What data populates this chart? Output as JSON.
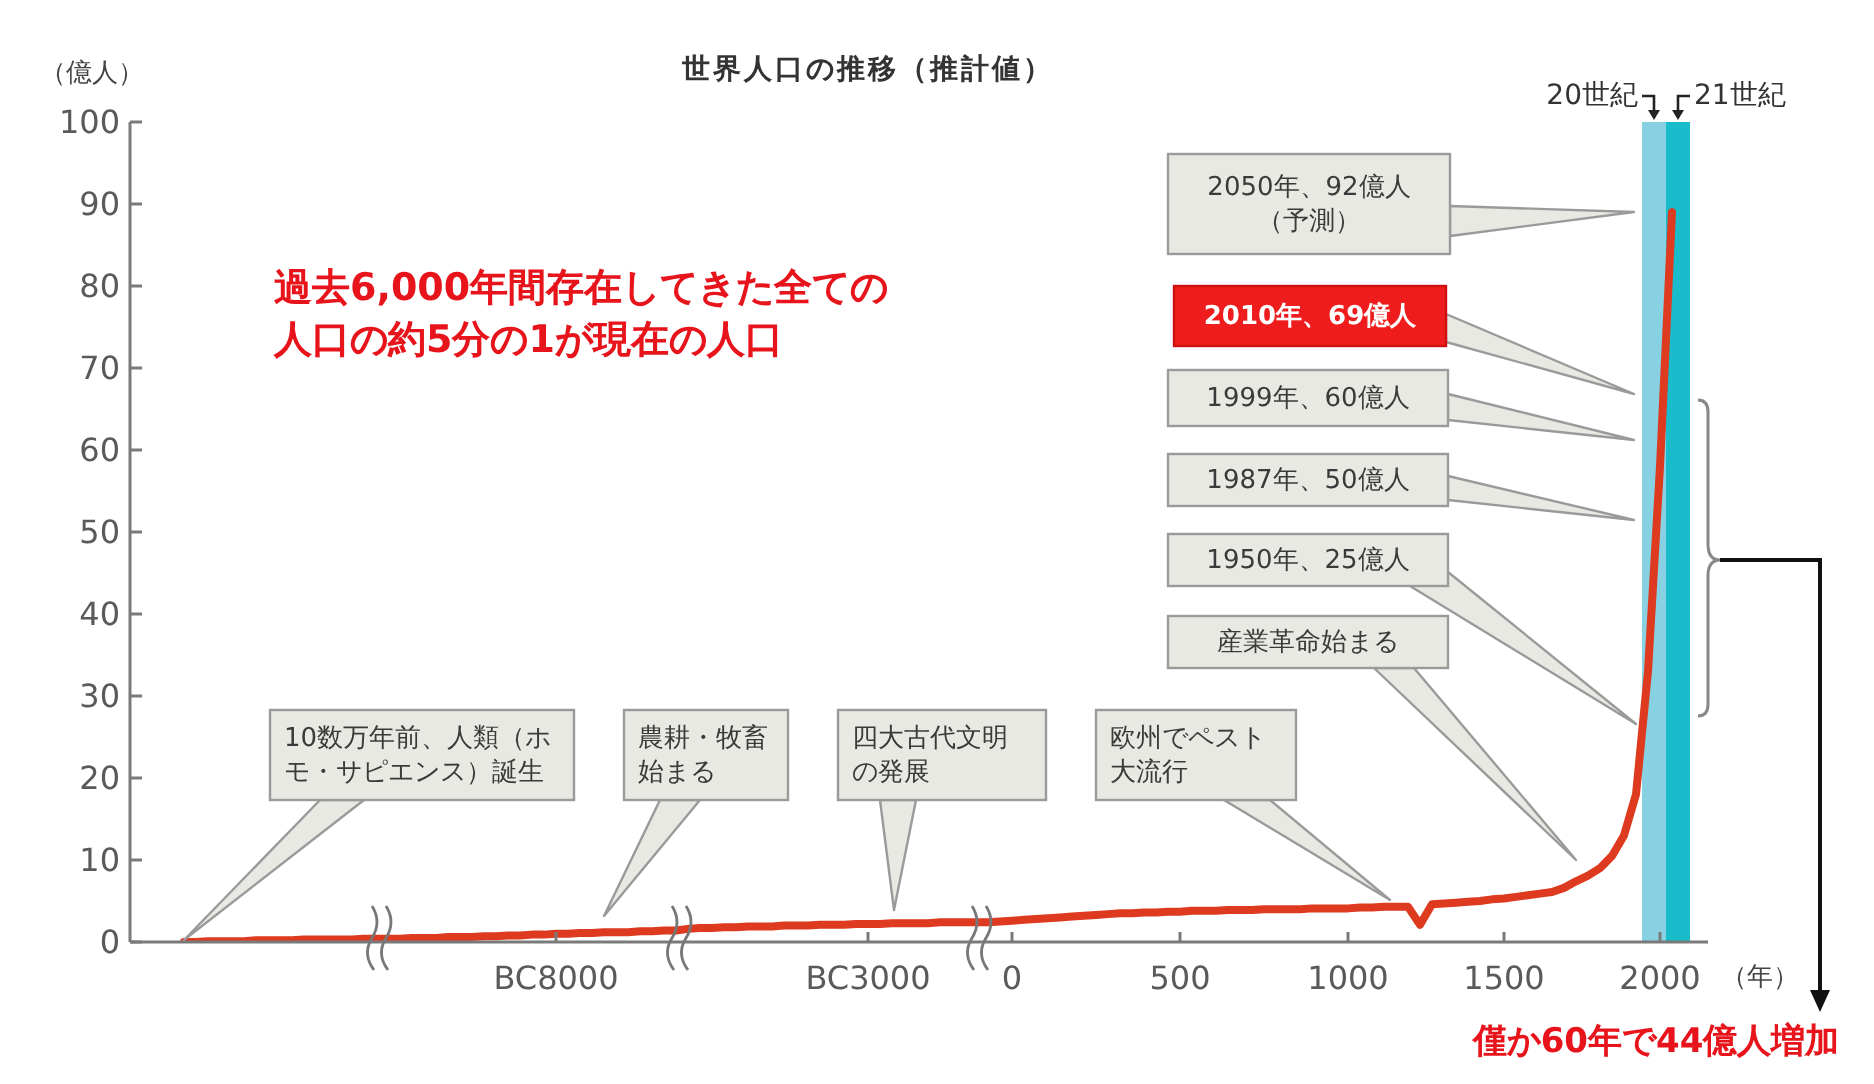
{
  "chart_data": {
    "type": "line",
    "title": "世界人口の推移（推計値）",
    "ylabel": "（億人）",
    "xlabel": "（年）",
    "categories": [
      null,
      null,
      null,
      null,
      null,
      null,
      null,
      null,
      null,
      null,
      null,
      null,
      null,
      null,
      null,
      null,
      null,
      null,
      null,
      null,
      null,
      null,
      null,
      null,
      null,
      null,
      null,
      null,
      null,
      null,
      null,
      null,
      null,
      null,
      null,
      "BC8000",
      null,
      null,
      null,
      null,
      null,
      null,
      null,
      null,
      null,
      null,
      null,
      null,
      null,
      null,
      null,
      null,
      null,
      null,
      null,
      null,
      null,
      null,
      null,
      null,
      null,
      "BC3000",
      null,
      null,
      null,
      null,
      null,
      null,
      null,
      null,
      null,
      null,
      null,
      "0",
      null,
      null,
      null,
      null,
      null,
      null,
      null,
      null,
      null,
      null,
      null,
      null,
      null,
      "500",
      null,
      null,
      null,
      null,
      null,
      null,
      null,
      null,
      null,
      null,
      null,
      null,
      null,
      "1000",
      null,
      null,
      null,
      null,
      null,
      null,
      null,
      null,
      null,
      null,
      null,
      null,
      "1500",
      null,
      null,
      null,
      null,
      null,
      null,
      null,
      null,
      null,
      null,
      null,
      null,
      "2000",
      null,
      null,
      null,
      null
    ],
    "values": [
      null,
      null,
      null,
      null,
      0,
      0,
      0.1,
      0.1,
      0.1,
      0.1,
      0.2,
      0.2,
      0.2,
      0.2,
      0.3,
      0.3,
      0.3,
      0.3,
      0.3,
      0.4,
      0.4,
      0.4,
      0.4,
      0.5,
      0.5,
      0.5,
      0.6,
      0.6,
      0.6,
      0.7,
      0.7,
      0.8,
      0.8,
      0.9,
      0.9,
      1.0,
      1.0,
      1.1,
      1.1,
      1.2,
      1.2,
      1.2,
      1.3,
      1.3,
      1.4,
      1.4,
      1.6,
      1.7,
      1.7,
      1.8,
      1.8,
      1.9,
      1.9,
      1.9,
      2.0,
      2.0,
      2.0,
      2.1,
      2.1,
      2.1,
      2.2,
      2.2,
      2.2,
      2.3,
      2.3,
      2.3,
      2.3,
      2.4,
      2.4,
      2.4,
      2.4,
      2.4,
      2.5,
      2.6,
      2.7,
      2.8,
      2.9,
      3.0,
      3.1,
      3.2,
      3.3,
      3.4,
      3.5,
      3.5,
      3.6,
      3.6,
      3.7,
      3.7,
      3.8,
      3.8,
      3.8,
      3.9,
      3.9,
      3.9,
      4.0,
      4.0,
      4.0,
      4.0,
      4.1,
      4.1,
      4.1,
      4.1,
      4.2,
      4.2,
      4.3,
      4.3,
      4.3,
      2.1,
      4.6,
      4.7,
      4.8,
      4.9,
      5.0,
      5.2,
      5.3,
      5.5,
      5.7,
      5.9,
      6.1,
      6.6,
      7.4,
      8.1,
      9.0,
      10.5,
      13,
      18,
      33,
      58,
      89,
      null,
      null,
      null
    ],
    "color": "#dd3a1f",
    "ylim": [
      0,
      100
    ],
    "yticks": [
      0,
      10,
      20,
      30,
      40,
      50,
      60,
      70,
      80,
      90,
      100
    ],
    "annotations": [
      "過去6,000年間存在してきた全ての人口の約5分の1が現在の人口",
      "10数万年前、人類（ホモ・サピエンス）誕生",
      "農耕・牧畜始まる",
      "四大古代文明の発展",
      "欧州でペスト大流行",
      "産業革命始まる",
      "1950年、25億人",
      "1987年、50億人",
      "1999年、60億人",
      "2010年、69億人",
      "2050年、92億人（予測）",
      "僅か60年で44億人増加",
      "20世紀",
      "21世紀"
    ]
  }
}
